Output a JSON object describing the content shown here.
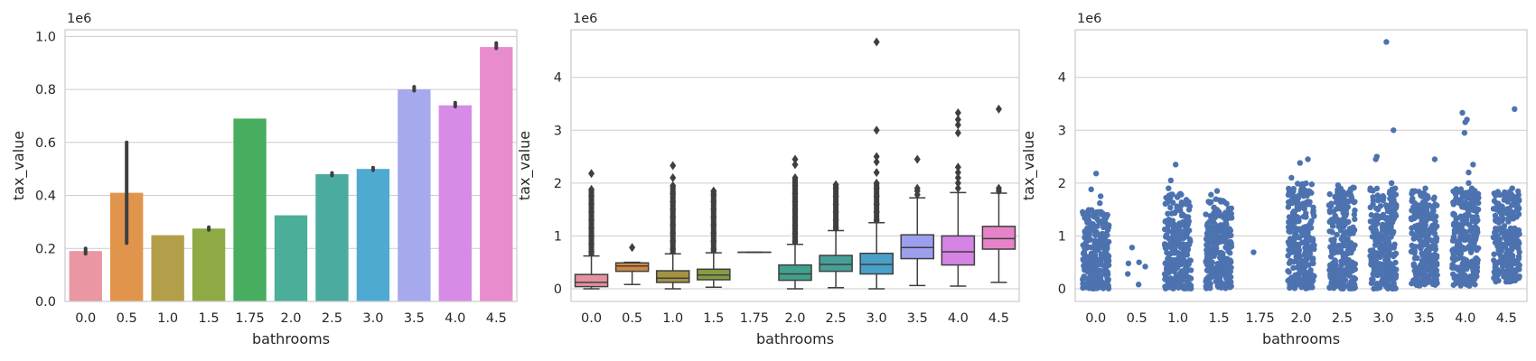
{
  "chart_data": [
    {
      "type": "bar",
      "xlabel": "bathrooms",
      "ylabel": "tax_value",
      "offset_text": "1e6",
      "ylim": [
        0,
        1.025
      ],
      "yticks": [
        0.0,
        0.2,
        0.4,
        0.6,
        0.8,
        1.0
      ],
      "ytick_labels": [
        "0.0",
        "0.2",
        "0.4",
        "0.6",
        "0.8",
        "1.0"
      ],
      "categories": [
        "0.0",
        "0.5",
        "1.0",
        "1.5",
        "1.75",
        "2.0",
        "2.5",
        "3.0",
        "3.5",
        "4.0",
        "4.5"
      ],
      "values": [
        0.19,
        0.41,
        0.25,
        0.275,
        0.69,
        0.325,
        0.48,
        0.5,
        0.8,
        0.74,
        0.96
      ],
      "ci_low": [
        0.18,
        0.22,
        0.25,
        0.27,
        0.69,
        0.325,
        0.475,
        0.495,
        0.795,
        0.735,
        0.955
      ],
      "ci_high": [
        0.2,
        0.6,
        0.25,
        0.28,
        0.69,
        0.325,
        0.485,
        0.505,
        0.81,
        0.75,
        0.975
      ],
      "colors": [
        "#ea96a3",
        "#e0944c",
        "#b39f49",
        "#8fa945",
        "#48ad5f",
        "#4aae98",
        "#4bab9f",
        "#4eaad1",
        "#a7a9ef",
        "#d68be6",
        "#e98cce"
      ]
    },
    {
      "type": "box",
      "xlabel": "bathrooms",
      "ylabel": "tax_value",
      "offset_text": "1e6",
      "ylim": [
        -0.24,
        4.9
      ],
      "yticks": [
        0,
        1,
        2,
        3,
        4
      ],
      "ytick_labels": [
        "0",
        "1",
        "2",
        "3",
        "4"
      ],
      "categories": [
        "0.0",
        "0.5",
        "1.0",
        "1.5",
        "1.75",
        "2.0",
        "2.5",
        "3.0",
        "3.5",
        "4.0",
        "4.5"
      ],
      "boxes": [
        {
          "whislo": 0.0,
          "q1": 0.04,
          "med": 0.12,
          "q3": 0.27,
          "whishi": 0.62,
          "fliers": [
            0.7,
            0.85,
            1.0,
            1.15,
            1.3,
            1.45,
            1.6,
            1.75,
            1.88,
            2.18
          ]
        },
        {
          "whislo": 0.08,
          "q1": 0.33,
          "med": 0.43,
          "q3": 0.49,
          "whishi": 0.5,
          "fliers": [
            0.78
          ]
        },
        {
          "whislo": 0.0,
          "q1": 0.12,
          "med": 0.2,
          "q3": 0.34,
          "whishi": 0.66,
          "fliers": [
            0.75,
            0.9,
            1.05,
            1.2,
            1.35,
            1.5,
            1.65,
            1.8,
            1.95,
            2.1,
            2.33
          ]
        },
        {
          "whislo": 0.03,
          "q1": 0.17,
          "med": 0.26,
          "q3": 0.37,
          "whishi": 0.68,
          "fliers": [
            0.75,
            0.9,
            1.05,
            1.2,
            1.35,
            1.5,
            1.65,
            1.78,
            1.85
          ]
        },
        {
          "whislo": 0.69,
          "q1": 0.69,
          "med": 0.69,
          "q3": 0.69,
          "whishi": 0.69,
          "fliers": []
        },
        {
          "whislo": 0.0,
          "q1": 0.16,
          "med": 0.28,
          "q3": 0.45,
          "whishi": 0.84,
          "fliers": [
            0.9,
            1.05,
            1.2,
            1.35,
            1.5,
            1.65,
            1.8,
            1.95,
            2.1,
            2.35,
            2.45
          ]
        },
        {
          "whislo": 0.02,
          "q1": 0.33,
          "med": 0.46,
          "q3": 0.63,
          "whishi": 1.1,
          "fliers": [
            1.15,
            1.3,
            1.45,
            1.6,
            1.75,
            1.9,
            1.97
          ]
        },
        {
          "whislo": 0.0,
          "q1": 0.28,
          "med": 0.46,
          "q3": 0.67,
          "whishi": 1.25,
          "fliers": [
            1.3,
            1.45,
            1.6,
            1.75,
            1.9,
            2.0,
            2.2,
            2.4,
            2.5,
            3.0,
            4.67
          ]
        },
        {
          "whislo": 0.06,
          "q1": 0.57,
          "med": 0.78,
          "q3": 1.02,
          "whishi": 1.72,
          "fliers": [
            1.78,
            1.85,
            1.9,
            2.45
          ]
        },
        {
          "whislo": 0.05,
          "q1": 0.45,
          "med": 0.7,
          "q3": 1.0,
          "whishi": 1.82,
          "fliers": [
            1.9,
            2.0,
            2.1,
            2.2,
            2.3,
            2.95,
            3.1,
            3.2,
            3.33
          ]
        },
        {
          "whislo": 0.12,
          "q1": 0.75,
          "med": 0.95,
          "q3": 1.18,
          "whishi": 1.81,
          "fliers": [
            1.85,
            1.9,
            3.4
          ]
        }
      ],
      "colors": [
        "#e5919e",
        "#cf8745",
        "#a39343",
        "#859c40",
        "#40a05a",
        "#42a08c",
        "#46a098",
        "#49a0c8",
        "#9c9fee",
        "#d683e6",
        "#e683c8"
      ]
    },
    {
      "type": "strip",
      "xlabel": "bathrooms",
      "ylabel": "tax_value",
      "offset_text": "1e6",
      "ylim": [
        -0.24,
        4.9
      ],
      "yticks": [
        0,
        1,
        2,
        3,
        4
      ],
      "ytick_labels": [
        "0",
        "1",
        "2",
        "3",
        "4"
      ],
      "categories": [
        "0.0",
        "0.5",
        "1.0",
        "1.5",
        "1.75",
        "2.0",
        "2.5",
        "3.0",
        "3.5",
        "4.0",
        "4.5"
      ],
      "color": "#4c72b0",
      "series": [
        {
          "range": [
            0.0,
            1.5
          ],
          "outliers": [
            1.62,
            1.75,
            1.88,
            2.18
          ]
        },
        {
          "range": null,
          "outliers": [
            0.08,
            0.28,
            0.42,
            0.48,
            0.5,
            0.78
          ]
        },
        {
          "range": [
            0.0,
            1.8
          ],
          "outliers": [
            1.9,
            2.05,
            2.35
          ]
        },
        {
          "range": [
            0.0,
            1.7
          ],
          "outliers": [
            1.78,
            1.85
          ]
        },
        {
          "range": null,
          "outliers": [
            0.69
          ]
        },
        {
          "range": [
            0.0,
            2.0
          ],
          "outliers": [
            2.1,
            2.38,
            2.45
          ]
        },
        {
          "range": [
            0.0,
            1.92
          ],
          "outliers": [
            1.96
          ]
        },
        {
          "range": [
            0.0,
            1.9
          ],
          "outliers": [
            2.0,
            2.45,
            2.5,
            3.0,
            4.67
          ]
        },
        {
          "range": [
            0.05,
            1.85
          ],
          "outliers": [
            1.9,
            2.45
          ]
        },
        {
          "range": [
            0.05,
            1.9
          ],
          "outliers": [
            2.0,
            2.2,
            2.35,
            2.95,
            3.15,
            3.2,
            3.33
          ]
        },
        {
          "range": [
            0.12,
            1.85
          ],
          "outliers": [
            1.9,
            3.4
          ]
        }
      ]
    }
  ]
}
